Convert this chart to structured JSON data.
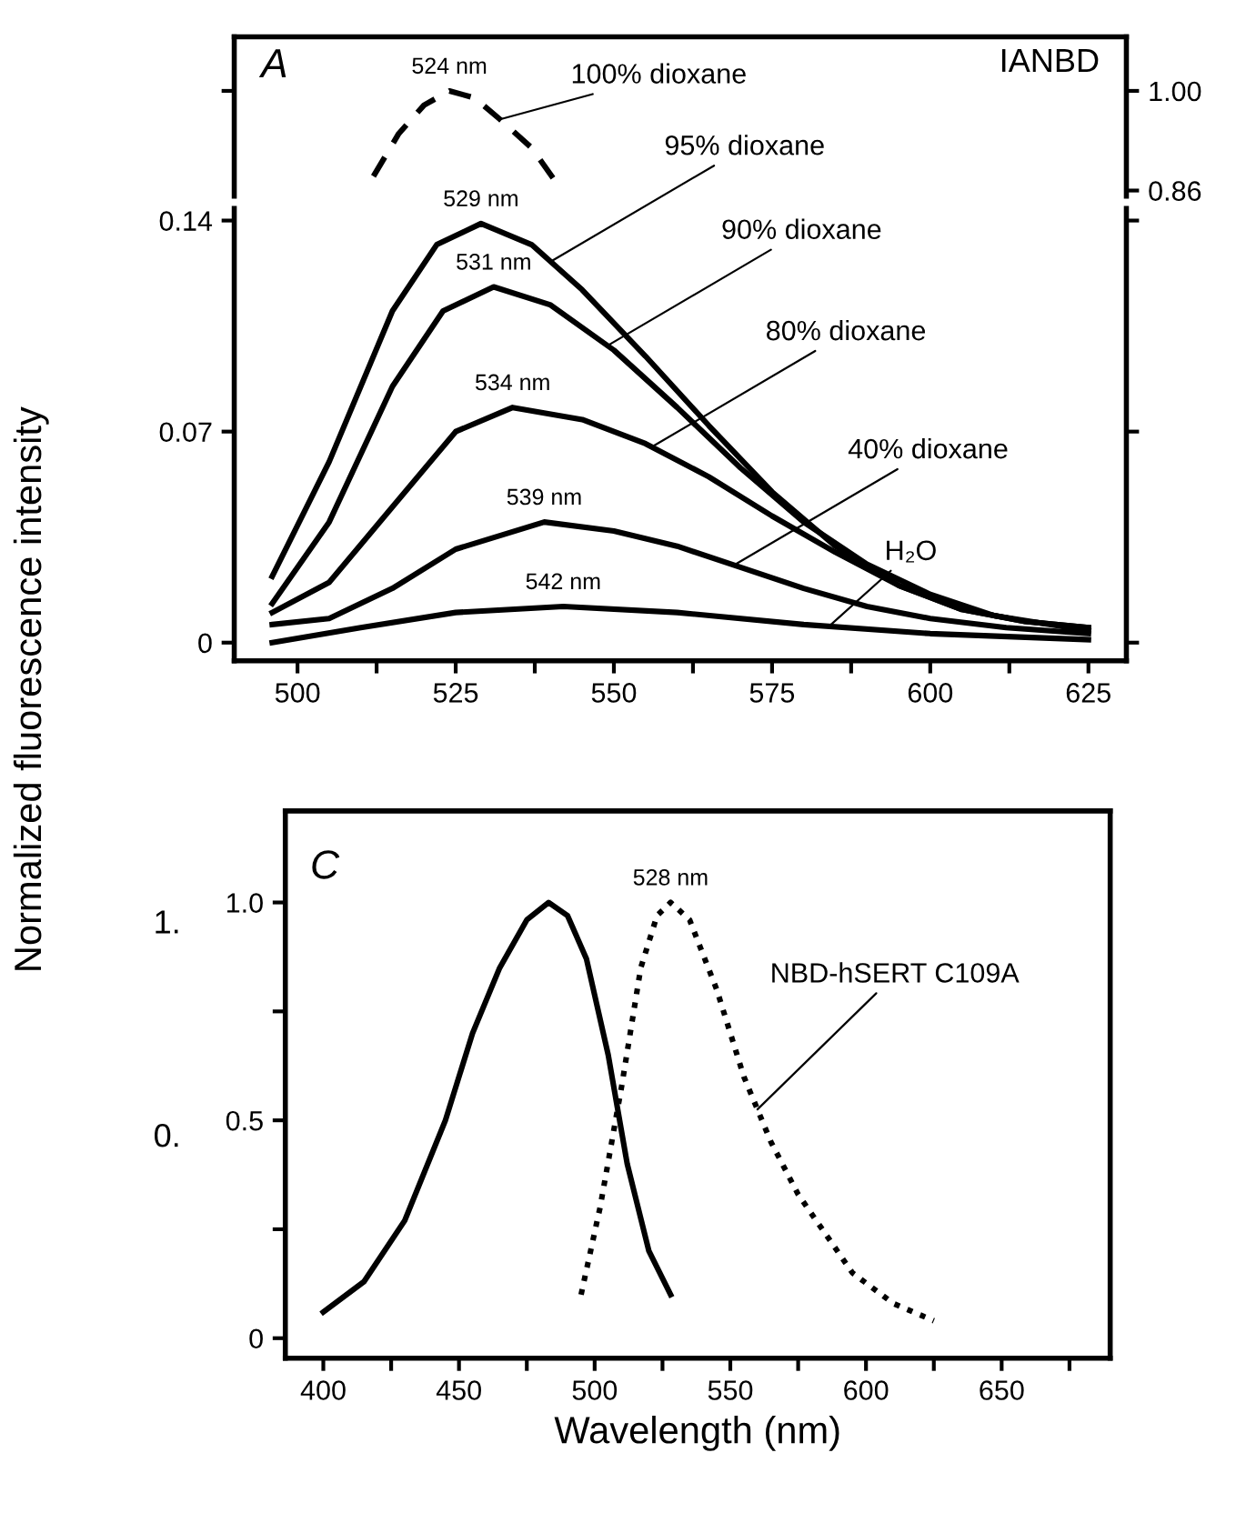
{
  "chart_data": [
    {
      "type": "line",
      "xlim": [
        490,
        631
      ],
      "ylim": [
        0.852,
        1.076
      ],
      "yticks": [
        {
          "value": 1.0,
          "label": "1.00"
        },
        0.86
      ],
      "tick_labels": "y",
      "marker": "none",
      "line_style": "solid",
      "grid": false,
      "legend": false,
      "series": [
        {
          "name": "100% dioxane",
          "color": "#000000",
          "line_style": "dashed",
          "x": [
            512,
            516,
            520,
            524,
            528,
            532,
            537,
            541
          ],
          "values": [
            0.88,
            0.94,
            0.98,
            1.0,
            0.99,
            0.96,
            0.92,
            0.87
          ]
        }
      ],
      "annotations": [
        "A",
        "IANBD",
        {
          "text": "524 nm",
          "x": 524,
          "y": 1.0
        }
      ]
    },
    {
      "type": "line",
      "xlim": [
        490,
        631
      ],
      "ylim": [
        -0.006,
        0.144
      ],
      "yticks": [
        0,
        0.07,
        0.14
      ],
      "xticks": [
        500,
        {
          "value": 512.5,
          "label": null
        },
        525,
        {
          "value": 537.5,
          "label": null
        },
        550,
        {
          "value": 562.5,
          "label": null
        },
        575,
        {
          "value": 587.5,
          "label": null
        },
        600,
        {
          "value": 612.5,
          "label": null
        },
        625
      ],
      "marker": "none",
      "line_style": "solid",
      "grid": false,
      "legend": false,
      "series": [
        {
          "name": "95% dioxane",
          "color": "#000000",
          "x": [
            496,
            505,
            515,
            522,
            529,
            537,
            545,
            555,
            565,
            575,
            585,
            595,
            605,
            615,
            625
          ],
          "values": [
            0.022,
            0.06,
            0.11,
            0.132,
            0.139,
            0.132,
            0.117,
            0.095,
            0.072,
            0.05,
            0.032,
            0.019,
            0.011,
            0.007,
            0.005
          ]
        },
        {
          "name": "90% dioxane",
          "color": "#000000",
          "x": [
            496,
            505,
            515,
            523,
            531,
            540,
            550,
            560,
            570,
            580,
            590,
            600,
            610,
            625
          ],
          "values": [
            0.013,
            0.04,
            0.085,
            0.11,
            0.118,
            0.112,
            0.097,
            0.078,
            0.058,
            0.04,
            0.026,
            0.016,
            0.009,
            0.004
          ]
        },
        {
          "name": "80% dioxane",
          "color": "#000000",
          "x": [
            496,
            505,
            515,
            525,
            534,
            545,
            555,
            565,
            575,
            585,
            595,
            605,
            615,
            625
          ],
          "values": [
            0.01,
            0.02,
            0.045,
            0.07,
            0.078,
            0.074,
            0.066,
            0.055,
            0.042,
            0.03,
            0.019,
            0.011,
            0.007,
            0.005
          ]
        },
        {
          "name": "40% dioxane",
          "color": "#000000",
          "x": [
            496,
            505,
            515,
            525,
            539,
            550,
            560,
            570,
            580,
            590,
            600,
            612,
            625
          ],
          "values": [
            0.006,
            0.008,
            0.018,
            0.031,
            0.04,
            0.037,
            0.032,
            0.025,
            0.018,
            0.012,
            0.008,
            0.005,
            0.003
          ]
        },
        {
          "name": "H₂O",
          "color": "#000000",
          "x": [
            496,
            510,
            525,
            542,
            560,
            580,
            600,
            625
          ],
          "values": [
            0.0,
            0.005,
            0.01,
            0.012,
            0.01,
            0.006,
            0.003,
            0.001
          ]
        }
      ],
      "annotations": [
        {
          "text": "529 nm",
          "x": 529,
          "y": 0.139
        },
        {
          "text": "531 nm",
          "x": 531,
          "y": 0.118
        },
        {
          "text": "534 nm",
          "x": 534,
          "y": 0.078
        },
        {
          "text": "539 nm",
          "x": 539,
          "y": 0.04
        },
        {
          "text": "542 nm",
          "x": 542,
          "y": 0.012
        }
      ]
    },
    {
      "type": "line",
      "xlim": [
        386,
        690
      ],
      "ylim": [
        -0.046,
        1.21
      ],
      "yticks": [
        0,
        {
          "value": 0.25,
          "label": null
        },
        0.5,
        {
          "value": 0.75,
          "label": null
        },
        {
          "value": 1.0,
          "label": "1.0"
        }
      ],
      "xticks": [
        400,
        {
          "value": 425,
          "label": null
        },
        450,
        {
          "value": 475,
          "label": null
        },
        500,
        {
          "value": 525,
          "label": null
        },
        550,
        {
          "value": 575,
          "label": null
        },
        600,
        {
          "value": 625,
          "label": null
        },
        650,
        {
          "value": 675,
          "label": null
        }
      ],
      "xlabel": "Wavelength (nm)",
      "ylabel": "Normalized fluorescence intensity",
      "marker": "none",
      "line_style": "solid",
      "grid": false,
      "legend": false,
      "series": [
        {
          "color": "#000000",
          "x": [
            400,
            415,
            430,
            445,
            455,
            465,
            475,
            483,
            490,
            497,
            505,
            512,
            520,
            528
          ],
          "values": [
            0.06,
            0.13,
            0.27,
            0.5,
            0.7,
            0.85,
            0.96,
            1.0,
            0.97,
            0.87,
            0.65,
            0.4,
            0.2,
            0.1
          ]
        },
        {
          "name": "NBD-hSERT C109A",
          "color": "#000000",
          "line_style": "dotted",
          "x": [
            495,
            502,
            510,
            517,
            523,
            528,
            535,
            545,
            555,
            565,
            575,
            585,
            595,
            610,
            625
          ],
          "values": [
            0.1,
            0.3,
            0.58,
            0.85,
            0.97,
            1.0,
            0.96,
            0.8,
            0.6,
            0.45,
            0.33,
            0.24,
            0.15,
            0.08,
            0.04
          ]
        }
      ],
      "annotations": [
        "C",
        {
          "text": "528 nm",
          "x": 528,
          "y": 1.0
        },
        "1.",
        "0."
      ]
    }
  ]
}
